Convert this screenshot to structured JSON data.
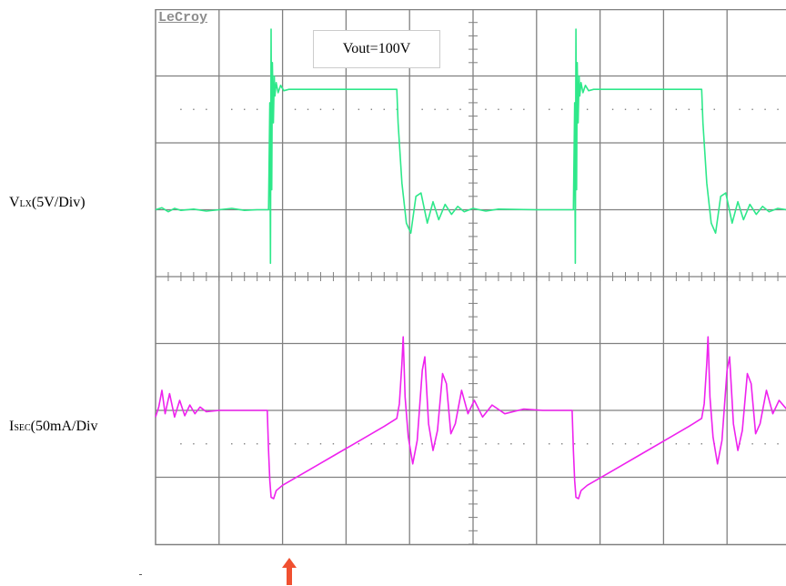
{
  "brand": "LeCroy",
  "annotation": "Vout=100V",
  "channel_labels": [
    {
      "main": "V",
      "sub": "LX",
      "rest": "(5V/Div)"
    },
    {
      "main": "I",
      "sub": "SEC",
      "rest": "(50mA/Div"
    }
  ],
  "colors": {
    "vlx": "#2ee88a",
    "isec": "#ee22ee",
    "grid": "#808080",
    "arrow": "#f05030"
  },
  "chart_data": {
    "type": "line",
    "grid": {
      "x_divisions": 10,
      "y_divisions": 8
    },
    "period_div": 4.8,
    "series": [
      {
        "name": "VLX",
        "unit_per_div": "5V/Div",
        "points": [
          [
            0.0,
            5.0
          ],
          [
            0.1,
            5.03
          ],
          [
            0.2,
            4.97
          ],
          [
            0.3,
            5.02
          ],
          [
            0.4,
            4.99
          ],
          [
            0.6,
            5.01
          ],
          [
            0.8,
            4.98
          ],
          [
            1.0,
            5.0
          ],
          [
            1.2,
            5.02
          ],
          [
            1.4,
            4.99
          ],
          [
            1.6,
            5.0
          ],
          [
            1.78,
            5.0
          ],
          [
            1.8,
            6.6
          ],
          [
            1.81,
            4.2
          ],
          [
            1.82,
            7.7
          ],
          [
            1.83,
            5.3
          ],
          [
            1.84,
            7.2
          ],
          [
            1.855,
            6.3
          ],
          [
            1.87,
            7.0
          ],
          [
            1.88,
            6.7
          ],
          [
            1.9,
            6.9
          ],
          [
            1.93,
            6.75
          ],
          [
            1.97,
            6.86
          ],
          [
            2.02,
            6.78
          ],
          [
            2.1,
            6.8
          ],
          [
            2.4,
            6.8
          ],
          [
            2.8,
            6.8
          ],
          [
            3.2,
            6.8
          ],
          [
            3.6,
            6.8
          ],
          [
            3.8,
            6.8
          ],
          [
            3.82,
            6.3
          ],
          [
            3.88,
            5.4
          ],
          [
            3.95,
            4.8
          ],
          [
            4.02,
            4.65
          ],
          [
            4.1,
            5.2
          ],
          [
            4.18,
            5.25
          ],
          [
            4.28,
            4.8
          ],
          [
            4.37,
            5.12
          ],
          [
            4.46,
            4.85
          ],
          [
            4.56,
            5.08
          ],
          [
            4.66,
            4.93
          ],
          [
            4.76,
            5.05
          ],
          [
            4.86,
            4.97
          ],
          [
            5.0,
            5.02
          ],
          [
            5.2,
            4.98
          ],
          [
            5.4,
            5.01
          ],
          [
            6.0,
            5.0
          ],
          [
            6.5,
            5.0
          ],
          [
            6.58,
            5.0
          ],
          [
            6.6,
            6.6
          ],
          [
            6.61,
            4.2
          ],
          [
            6.62,
            7.7
          ],
          [
            6.63,
            5.3
          ],
          [
            6.64,
            7.2
          ],
          [
            6.655,
            6.3
          ],
          [
            6.67,
            7.0
          ],
          [
            6.68,
            6.7
          ],
          [
            6.7,
            6.9
          ],
          [
            6.73,
            6.75
          ],
          [
            6.77,
            6.86
          ],
          [
            6.82,
            6.78
          ],
          [
            6.9,
            6.8
          ],
          [
            7.4,
            6.8
          ],
          [
            8.0,
            6.8
          ],
          [
            8.4,
            6.8
          ],
          [
            8.6,
            6.8
          ],
          [
            8.62,
            6.3
          ],
          [
            8.68,
            5.4
          ],
          [
            8.75,
            4.8
          ],
          [
            8.82,
            4.65
          ],
          [
            8.9,
            5.2
          ],
          [
            8.98,
            5.25
          ],
          [
            9.08,
            4.8
          ],
          [
            9.17,
            5.12
          ],
          [
            9.26,
            4.85
          ],
          [
            9.36,
            5.08
          ],
          [
            9.46,
            4.93
          ],
          [
            9.56,
            5.05
          ],
          [
            9.66,
            4.97
          ],
          [
            9.8,
            5.02
          ],
          [
            10.0,
            4.99
          ]
        ]
      },
      {
        "name": "ISEC",
        "unit_per_div": "50mA/Div",
        "points": [
          [
            0.0,
            1.9
          ],
          [
            0.05,
            2.05
          ],
          [
            0.1,
            2.3
          ],
          [
            0.15,
            1.95
          ],
          [
            0.22,
            2.25
          ],
          [
            0.3,
            1.9
          ],
          [
            0.38,
            2.15
          ],
          [
            0.46,
            1.92
          ],
          [
            0.54,
            2.08
          ],
          [
            0.62,
            1.95
          ],
          [
            0.7,
            2.05
          ],
          [
            0.8,
            1.98
          ],
          [
            1.0,
            2.0
          ],
          [
            1.3,
            2.0
          ],
          [
            1.6,
            2.0
          ],
          [
            1.76,
            2.0
          ],
          [
            1.78,
            1.4
          ],
          [
            1.8,
            0.95
          ],
          [
            1.82,
            0.7
          ],
          [
            1.86,
            0.68
          ],
          [
            1.9,
            0.8
          ],
          [
            2.0,
            0.88
          ],
          [
            2.4,
            1.1
          ],
          [
            2.8,
            1.32
          ],
          [
            3.2,
            1.54
          ],
          [
            3.6,
            1.76
          ],
          [
            3.8,
            1.88
          ],
          [
            3.84,
            2.1
          ],
          [
            3.88,
            2.7
          ],
          [
            3.9,
            3.1
          ],
          [
            3.93,
            2.2
          ],
          [
            3.98,
            1.6
          ],
          [
            4.05,
            1.2
          ],
          [
            4.12,
            1.55
          ],
          [
            4.2,
            2.6
          ],
          [
            4.24,
            2.8
          ],
          [
            4.3,
            1.8
          ],
          [
            4.37,
            1.4
          ],
          [
            4.44,
            1.7
          ],
          [
            4.52,
            2.55
          ],
          [
            4.58,
            2.4
          ],
          [
            4.65,
            1.65
          ],
          [
            4.72,
            1.8
          ],
          [
            4.82,
            2.3
          ],
          [
            4.92,
            1.95
          ],
          [
            5.02,
            2.15
          ],
          [
            5.15,
            1.9
          ],
          [
            5.3,
            2.08
          ],
          [
            5.5,
            1.95
          ],
          [
            5.8,
            2.02
          ],
          [
            6.1,
            2.0
          ],
          [
            6.56,
            2.0
          ],
          [
            6.58,
            1.4
          ],
          [
            6.6,
            0.95
          ],
          [
            6.62,
            0.7
          ],
          [
            6.66,
            0.68
          ],
          [
            6.7,
            0.8
          ],
          [
            6.8,
            0.88
          ],
          [
            7.2,
            1.1
          ],
          [
            7.6,
            1.32
          ],
          [
            8.0,
            1.54
          ],
          [
            8.4,
            1.76
          ],
          [
            8.6,
            1.88
          ],
          [
            8.64,
            2.1
          ],
          [
            8.68,
            2.7
          ],
          [
            8.7,
            3.1
          ],
          [
            8.73,
            2.2
          ],
          [
            8.78,
            1.6
          ],
          [
            8.85,
            1.2
          ],
          [
            8.92,
            1.55
          ],
          [
            9.0,
            2.6
          ],
          [
            9.04,
            2.8
          ],
          [
            9.1,
            1.8
          ],
          [
            9.17,
            1.4
          ],
          [
            9.24,
            1.7
          ],
          [
            9.32,
            2.55
          ],
          [
            9.38,
            2.4
          ],
          [
            9.45,
            1.65
          ],
          [
            9.52,
            1.8
          ],
          [
            9.62,
            2.3
          ],
          [
            9.72,
            1.95
          ],
          [
            9.82,
            2.15
          ],
          [
            10.0,
            1.95
          ]
        ]
      }
    ]
  }
}
